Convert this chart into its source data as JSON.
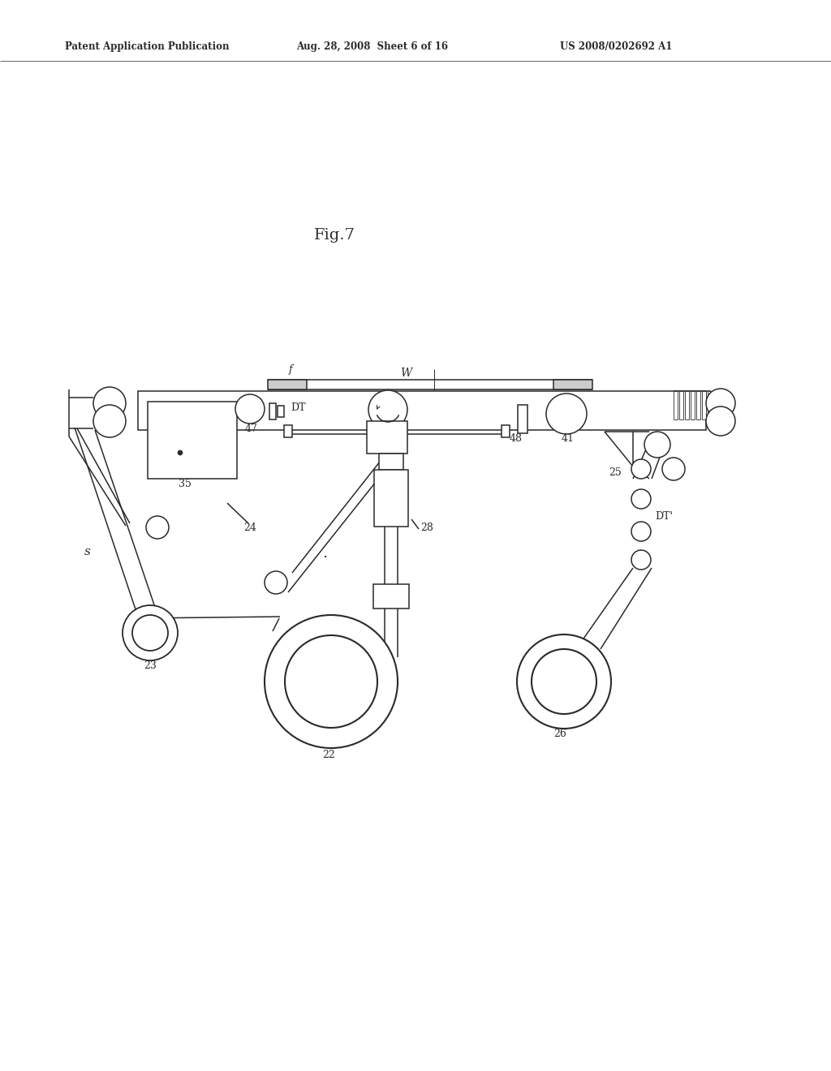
{
  "bg_color": "#ffffff",
  "lc": "#2a2a2a",
  "lw": 1.1,
  "header1": "Patent Application Publication",
  "header2": "Aug. 28, 2008  Sheet 6 of 16",
  "header3": "US 2008/0202692 A1",
  "fig_title": "Fig.7"
}
